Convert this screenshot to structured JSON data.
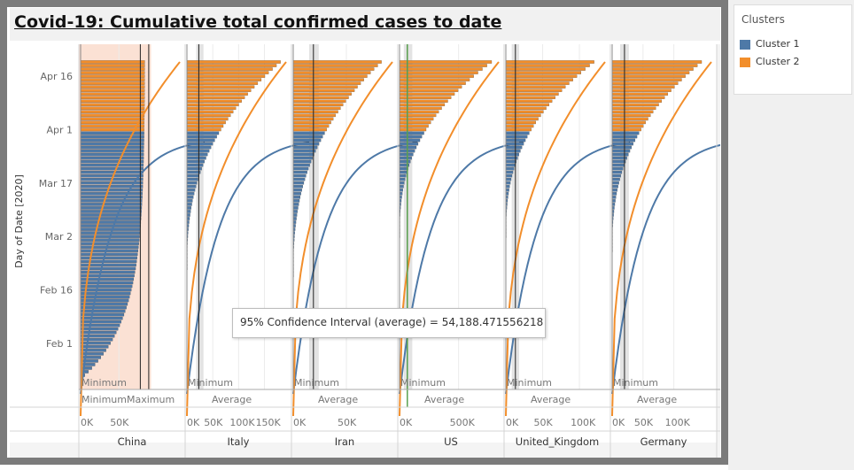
{
  "title": "Covid-19: Cumulative total confirmed cases to date",
  "legend": {
    "title": "Clusters",
    "items": [
      {
        "label": "Cluster 1",
        "color": "#4e79a7"
      },
      {
        "label": "Cluster 2",
        "color": "#f28e2b"
      }
    ]
  },
  "tooltip": "95% Confidence Interval (average) = 54,188.471556218",
  "chart_data": {
    "type": "bar",
    "orientation": "horizontal",
    "y_axis_label": "Day of Date [2020]",
    "y_ticks": [
      "Apr 16",
      "Apr 1",
      "Mar 17",
      "Mar 2",
      "Feb 16",
      "Feb 1"
    ],
    "date_range": [
      "2020-01-22",
      "2020-04-20"
    ],
    "cluster_change_date": "2020-04-01",
    "grid": true,
    "legend_position": "top-right",
    "series": [
      {
        "name": "Cluster 1",
        "color": "#4e79a7"
      },
      {
        "name": "Cluster 2",
        "color": "#f28e2b"
      }
    ],
    "panels": [
      {
        "country": "China",
        "xmax": 125000,
        "x_ticks": [
          "0K",
          "50K"
        ],
        "x_tick_values": [
          0,
          50000
        ],
        "start_value": 550,
        "end_value": 83800,
        "ref_labels": [
          "Minimum",
          "Minimum",
          "Maximum"
        ],
        "ref_lines": [
          78000,
          89000
        ],
        "ci_band": [
          -12000,
          92000
        ],
        "ci_band_color": "#fbe1d4"
      },
      {
        "country": "Italy",
        "xmax": 185000,
        "x_ticks": [
          "0K",
          "50K",
          "100K",
          "150K"
        ],
        "x_tick_values": [
          0,
          50000,
          100000,
          150000
        ],
        "start_value": 0,
        "end_value": 181000,
        "outbreak_date": "2020-02-21",
        "ref_labels": [
          "Minimum",
          "Average"
        ],
        "ref_lines": [
          23000
        ],
        "ci_band": [
          18000,
          32000
        ]
      },
      {
        "country": "Iran",
        "xmax": 90000,
        "x_ticks": [
          "0K",
          "50K"
        ],
        "x_tick_values": [
          0,
          50000
        ],
        "start_value": 0,
        "end_value": 83000,
        "outbreak_date": "2020-02-19",
        "ref_labels": [
          "Minimum",
          "Average"
        ],
        "ref_lines": [
          19000
        ],
        "ci_band": [
          15000,
          24000
        ]
      },
      {
        "country": "US",
        "xmax": 810000,
        "x_ticks": [
          "0K",
          "500K"
        ],
        "x_tick_values": [
          0,
          500000
        ],
        "start_value": 1,
        "end_value": 780000,
        "outbreak_date": "2020-03-01",
        "ref_labels": [
          "Minimum",
          "Average"
        ],
        "ref_lines": [
          66000
        ],
        "ci_band": [
          36000,
          108000
        ],
        "highlight_line": 66000,
        "highlight_color": "#59a14f"
      },
      {
        "country": "United_Kingdom",
        "xmax": 130000,
        "x_ticks": [
          "0K",
          "50K",
          "100K"
        ],
        "x_tick_values": [
          0,
          50000,
          100000
        ],
        "start_value": 0,
        "end_value": 120000,
        "outbreak_date": "2020-03-01",
        "ref_labels": [
          "Minimum",
          "Average"
        ],
        "ref_lines": [
          13000
        ],
        "ci_band": [
          8000,
          18000
        ]
      },
      {
        "country": "Germany",
        "xmax": 155000,
        "x_ticks": [
          "0K",
          "50K",
          "100K"
        ],
        "x_tick_values": [
          0,
          50000,
          100000
        ],
        "start_value": 0,
        "end_value": 145000,
        "outbreak_date": "2020-02-26",
        "ref_labels": [
          "Minimum",
          "Average"
        ],
        "ref_lines": [
          20000
        ],
        "ci_band": [
          13000,
          27000
        ]
      }
    ]
  }
}
